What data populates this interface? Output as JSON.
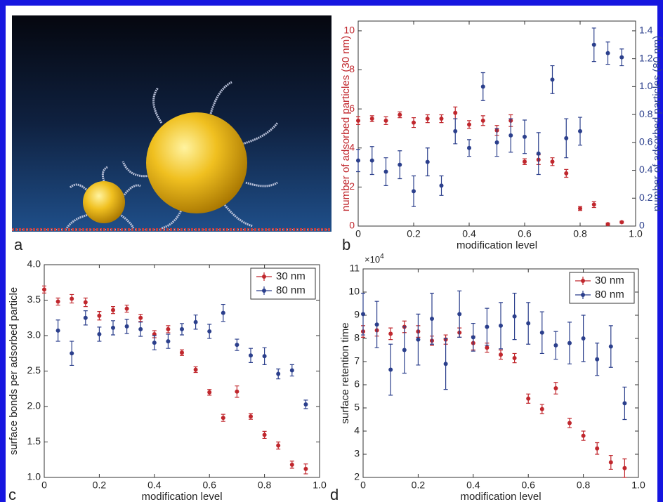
{
  "image_panel": {
    "label": "a"
  },
  "chart_data": [
    {
      "type": "scatter",
      "label": "b",
      "xlabel": "modification level",
      "ylabel": "number of adsorbed particles (30 nm)",
      "y2label": "number of adsorbed particles (80 nm)",
      "x": [
        0,
        0.05,
        0.1,
        0.15,
        0.2,
        0.25,
        0.3,
        0.35,
        0.4,
        0.45,
        0.5,
        0.55,
        0.6,
        0.65,
        0.7,
        0.75,
        0.8,
        0.85,
        0.9,
        0.95
      ],
      "xlim": [
        0,
        1
      ],
      "xticks": [
        0,
        0.2,
        0.4,
        0.6,
        0.8,
        {
          "value": 1,
          "label": "1.0"
        }
      ],
      "ylim": [
        0,
        10.5
      ],
      "yticks": [
        0,
        2,
        4,
        6,
        8,
        10
      ],
      "y2lim": [
        0,
        1.47
      ],
      "y2ticks": [
        0,
        0.2,
        0.4,
        0.6,
        0.8,
        {
          "value": 1,
          "label": "1.0"
        },
        1.2,
        1.4
      ],
      "series": [
        {
          "color": "#c0272d",
          "axis": "y",
          "values": [
            5.4,
            5.5,
            5.4,
            5.7,
            5.3,
            5.5,
            5.5,
            5.8,
            5.2,
            5.4,
            4.9,
            5.4,
            3.3,
            3.4,
            3.3,
            2.7,
            0.9,
            1.1,
            0.1,
            0.2
          ],
          "errors": [
            0.2,
            0.15,
            0.2,
            0.15,
            0.25,
            0.2,
            0.2,
            0.3,
            0.2,
            0.25,
            0.25,
            0.3,
            0.15,
            0.25,
            0.2,
            0.2,
            0.1,
            0.15,
            0.05,
            0.05
          ]
        },
        {
          "color": "#2b3f8c",
          "axis": "y2",
          "values": [
            0.47,
            0.47,
            0.39,
            0.44,
            0.25,
            0.46,
            0.29,
            0.68,
            0.56,
            1.0,
            0.6,
            0.65,
            0.64,
            0.52,
            1.05,
            0.63,
            0.68,
            1.3,
            1.24,
            1.21
          ],
          "errors": [
            0.08,
            0.1,
            0.1,
            0.1,
            0.11,
            0.1,
            0.07,
            0.09,
            0.06,
            0.1,
            0.1,
            0.12,
            0.12,
            0.15,
            0.1,
            0.14,
            0.1,
            0.12,
            0.08,
            0.06
          ]
        }
      ]
    },
    {
      "type": "scatter",
      "label": "c",
      "xlabel": "modification level",
      "ylabel": "surface bonds per adsorbed particle",
      "x": [
        0,
        0.05,
        0.1,
        0.15,
        0.2,
        0.25,
        0.3,
        0.35,
        0.4,
        0.45,
        0.5,
        0.55,
        0.6,
        0.65,
        0.7,
        0.75,
        0.8,
        0.85,
        0.9,
        0.95
      ],
      "xlim": [
        0,
        1
      ],
      "xticks": [
        0,
        0.2,
        0.4,
        0.6,
        0.8,
        {
          "value": 1,
          "label": "1.0"
        }
      ],
      "ylim": [
        1,
        4
      ],
      "yticks": [
        {
          "value": 1,
          "label": "1.0"
        },
        1.5,
        {
          "value": 2,
          "label": "2.0"
        },
        2.5,
        {
          "value": 3,
          "label": "3.0"
        },
        3.5,
        {
          "value": 4,
          "label": "4.0"
        }
      ],
      "legend": "upper right",
      "series": [
        {
          "name": "30 nm",
          "color": "#c0272d",
          "values": [
            3.65,
            3.48,
            3.52,
            3.47,
            3.28,
            3.36,
            3.38,
            3.25,
            3.02,
            3.09,
            2.76,
            2.52,
            2.2,
            1.84,
            2.21,
            1.86,
            1.6,
            1.45,
            1.18,
            1.12
          ],
          "errors": [
            0.05,
            0.05,
            0.06,
            0.06,
            0.06,
            0.05,
            0.05,
            0.05,
            0.05,
            0.05,
            0.04,
            0.04,
            0.04,
            0.05,
            0.08,
            0.04,
            0.05,
            0.05,
            0.05,
            0.07
          ]
        },
        {
          "name": "80 nm",
          "color": "#2b3f8c",
          "values": [
            null,
            3.07,
            2.75,
            3.25,
            3.02,
            3.11,
            3.13,
            3.09,
            2.9,
            2.92,
            3.09,
            3.19,
            3.06,
            3.32,
            2.87,
            2.72,
            2.71,
            2.46,
            2.51,
            2.03
          ],
          "errors": [
            null,
            0.15,
            0.17,
            0.1,
            0.1,
            0.1,
            0.1,
            0.1,
            0.1,
            0.1,
            0.08,
            0.1,
            0.1,
            0.12,
            0.08,
            0.1,
            0.12,
            0.07,
            0.08,
            0.06
          ]
        }
      ]
    },
    {
      "type": "scatter",
      "label": "d",
      "xlabel": "modification level",
      "ylabel": "surface retention time",
      "y_multiplier": {
        "base": "×10",
        "exponent": "4"
      },
      "x": [
        0,
        0.05,
        0.1,
        0.15,
        0.2,
        0.25,
        0.3,
        0.35,
        0.4,
        0.45,
        0.5,
        0.55,
        0.6,
        0.65,
        0.7,
        0.75,
        0.8,
        0.85,
        0.9,
        0.95
      ],
      "xlim": [
        0,
        1
      ],
      "xticks": [
        0,
        0.2,
        0.4,
        0.6,
        0.8,
        {
          "value": 1,
          "label": "1.0"
        }
      ],
      "ylim": [
        2,
        11
      ],
      "yticks": [
        2,
        3,
        4,
        5,
        6,
        7,
        8,
        9,
        10,
        11
      ],
      "legend": "upper right",
      "series": [
        {
          "name": "30 nm",
          "color": "#c0272d",
          "values": [
            8.3,
            8.35,
            8.2,
            8.5,
            8.3,
            7.9,
            7.95,
            8.25,
            7.8,
            7.6,
            7.3,
            7.15,
            5.4,
            4.95,
            5.85,
            4.35,
            3.8,
            3.25,
            2.65,
            2.4
          ],
          "errors": [
            0.25,
            0.25,
            0.25,
            0.25,
            0.25,
            0.2,
            0.2,
            0.2,
            0.3,
            0.2,
            0.2,
            0.2,
            0.2,
            0.2,
            0.25,
            0.2,
            0.2,
            0.25,
            0.3,
            0.4
          ]
        },
        {
          "name": "80 nm",
          "color": "#2b3f8c",
          "values": [
            9.05,
            8.6,
            6.65,
            7.5,
            7.95,
            8.85,
            6.9,
            9.05,
            8.05,
            8.5,
            8.55,
            8.95,
            8.65,
            8.25,
            7.7,
            7.8,
            8.0,
            7.1,
            7.65,
            5.2
          ],
          "errors": [
            0.9,
            1.0,
            1.1,
            1.0,
            1.1,
            1.1,
            1.1,
            1.0,
            0.6,
            0.8,
            1.0,
            1.0,
            0.9,
            0.9,
            0.6,
            0.9,
            1.0,
            0.7,
            0.9,
            0.7
          ]
        }
      ]
    }
  ]
}
